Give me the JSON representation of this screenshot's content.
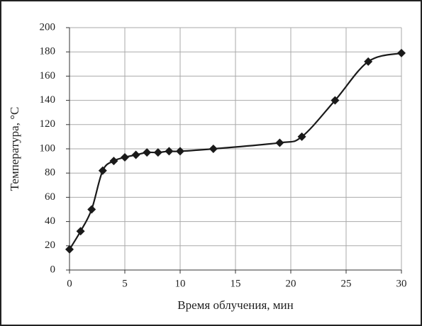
{
  "chart_data": {
    "type": "line",
    "x_label": "Время облучения, мин",
    "y_label": "Температура, °C",
    "x": [
      0,
      1,
      2,
      3,
      4,
      5,
      6,
      7,
      8,
      9,
      10,
      13,
      19,
      21,
      24,
      27,
      30
    ],
    "series": [
      {
        "color": "#1a1a1a",
        "values": [
          17,
          32,
          50,
          82,
          90,
          93,
          95,
          97,
          97,
          98,
          98,
          100,
          105,
          110,
          140,
          172,
          179
        ]
      }
    ],
    "xlim": [
      0,
      30
    ],
    "xticks": [
      0,
      5,
      10,
      15,
      20,
      25,
      30
    ],
    "ylim": [
      0,
      200
    ],
    "yticks": [
      0,
      20,
      40,
      60,
      80,
      100,
      120,
      140,
      160,
      180,
      200
    ],
    "grid": true,
    "smooth": true,
    "marker": "diamond"
  }
}
